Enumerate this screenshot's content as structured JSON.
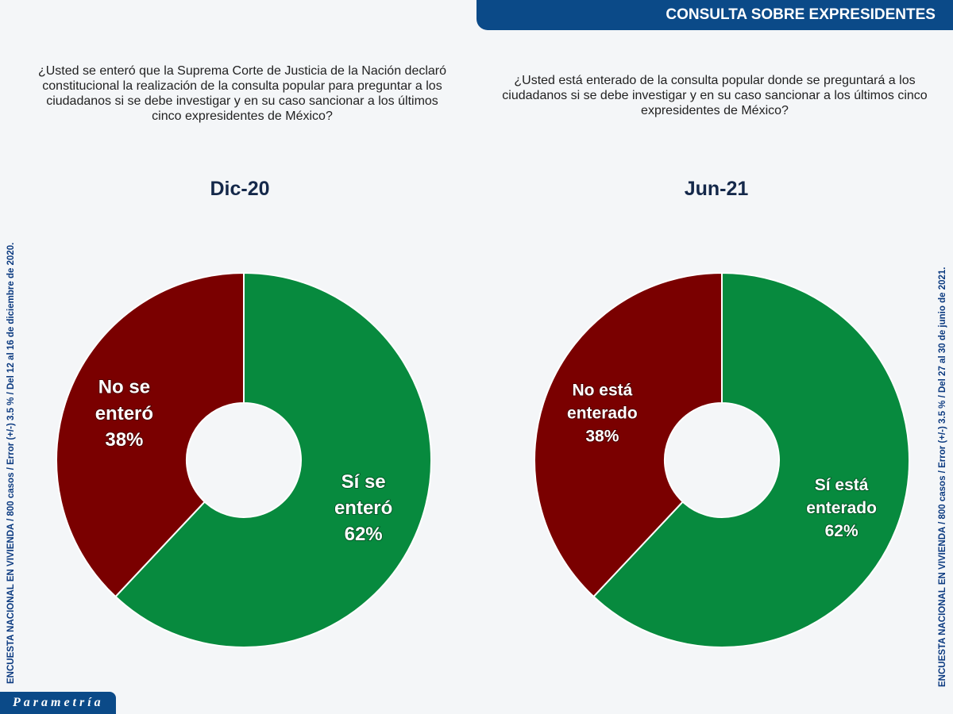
{
  "header": {
    "title": "CONSULTA SOBRE EXPRESIDENTES"
  },
  "logo": "Parametría",
  "side_left": "ENCUESTA NACIONAL EN VIVIENDA / 800 casos / Error (+/-) 3.5 % / Del 12 al 16 de diciembre de 2020.",
  "side_right": "ENCUESTA NACIONAL EN VIVIENDA / 800 casos / Error (+/-) 3.5 % / Del 27 al 30 de junio de 2021.",
  "colors": {
    "yes": "#078a3e",
    "no": "#7a0000",
    "header": "#0b4a88"
  },
  "chart_data": [
    {
      "type": "pie",
      "donut": true,
      "title": "Dic-20",
      "question": "¿Usted se enteró que la Suprema Corte de Justicia de la Nación declaró constitucional la realización de la consulta popular para preguntar a los ciudadanos si se debe investigar y en su caso sancionar a los últimos cinco expresidentes de México?",
      "slices": [
        {
          "label": "Sí se enteró",
          "value": 62,
          "text": "62%"
        },
        {
          "label": "No se enteró",
          "value": 38,
          "text": "38%"
        }
      ]
    },
    {
      "type": "pie",
      "donut": true,
      "title": "Jun-21",
      "question": "¿Usted está enterado de la consulta popular donde se preguntará a los ciudadanos si se debe investigar y en su caso sancionar a los últimos cinco expresidentes de México?",
      "slices": [
        {
          "label": "Sí está enterado",
          "value": 62,
          "text": "62%"
        },
        {
          "label": "No está enterado",
          "value": 38,
          "text": "38%"
        }
      ]
    }
  ]
}
